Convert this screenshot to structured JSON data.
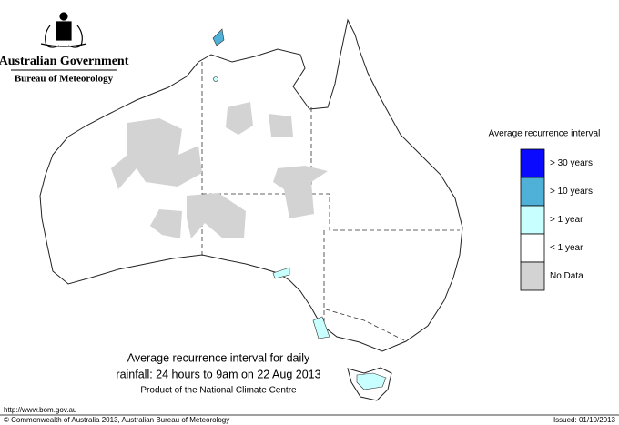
{
  "header": {
    "title": "Australian Government",
    "subtitle": "Bureau of Meteorology"
  },
  "legend": {
    "title": "Average recurrence interval",
    "items": [
      {
        "label": "> 30 years",
        "color": "#0a0aff"
      },
      {
        "label": "> 10 years",
        "color": "#4fb0d8"
      },
      {
        "label": "> 1 year",
        "color": "#c8ffff"
      },
      {
        "label": "< 1 year",
        "color": "#ffffff"
      },
      {
        "label": "No Data",
        "color": "#d3d3d3"
      }
    ]
  },
  "caption": {
    "lines": [
      "Average recurrence interval for daily",
      "rainfall: 24 hours to 9am on 22 Aug 2013"
    ],
    "product": "Product of the National Climate Centre"
  },
  "footer": {
    "url": "http://www.bom.gov.au",
    "copyright": "© Commonwealth of Australia 2013, Australian Bureau of Meteorology",
    "issued": "Issued: 01/10/2013"
  }
}
